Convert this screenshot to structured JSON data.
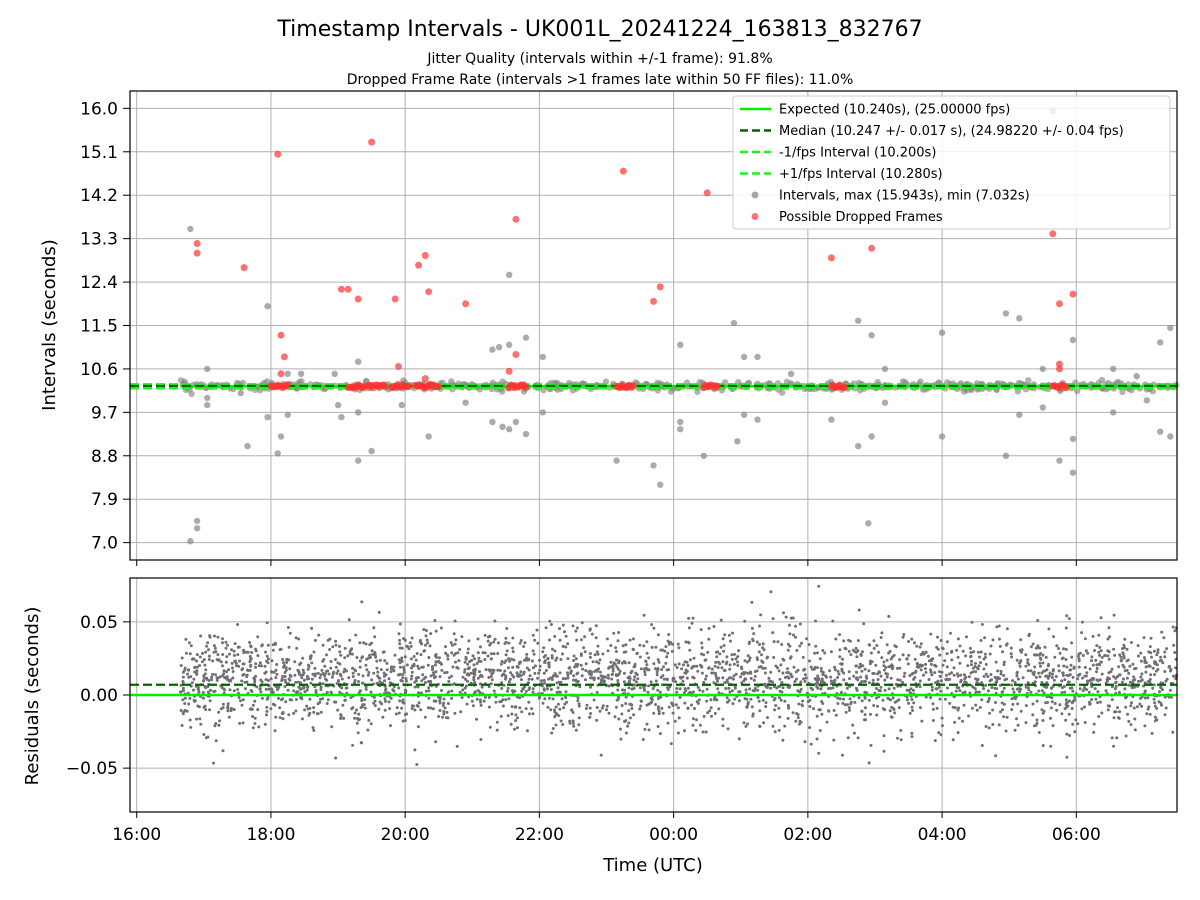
{
  "chart_data": {
    "title": "Timestamp Intervals - UK001L_20241224_163813_832767",
    "subtitle_lines": [
      "Jitter Quality (intervals within +/-1 frame): 91.8%",
      "Dropped Frame Rate (intervals >1 frames late within 50 FF files): 11.0%"
    ],
    "xlabel": "Time (UTC)",
    "x_ticks": [
      "16:00",
      "18:00",
      "20:00",
      "22:00",
      "00:00",
      "02:00",
      "04:00",
      "06:00"
    ],
    "x_range_hours": [
      15.9,
      31.5
    ],
    "data_range_hours": [
      16.65,
      31.5
    ],
    "panels": [
      {
        "type": "scatter",
        "ylabel": "Intervals (seconds)",
        "ylim": [
          6.64,
          16.36
        ],
        "y_ticks": [
          "7.0",
          "7.9",
          "8.8",
          "9.7",
          "10.6",
          "11.5",
          "12.4",
          "13.3",
          "14.2",
          "15.1",
          "16.0"
        ],
        "grid": true,
        "legend_position": "top-right",
        "legend": [
          {
            "label": "Expected (10.240s), (25.00000 fps)",
            "style": "solid-line",
            "color": "#00ee00"
          },
          {
            "label": "Median (10.247 +/- 0.017 s), (24.98220 +/- 0.04 fps)",
            "style": "dashed-line",
            "color": "#006400"
          },
          {
            "label": "-1/fps Interval (10.200s)",
            "style": "dashed-line",
            "color": "#22ee22"
          },
          {
            "label": "+1/fps Interval (10.280s)",
            "style": "dashed-line",
            "color": "#22ee22"
          },
          {
            "label": "Intervals, max (15.943s), min (7.032s)",
            "style": "marker",
            "color": "#888888"
          },
          {
            "label": "Possible Dropped Frames",
            "style": "marker",
            "color": "#ff4444"
          }
        ],
        "lines": {
          "expected": 10.24,
          "median": 10.247,
          "minus_1_fps": 10.2,
          "plus_1_fps": 10.28
        },
        "interval_outliers": [
          [
            16.8,
            13.5
          ],
          [
            16.8,
            7.03
          ],
          [
            16.9,
            7.45
          ],
          [
            16.9,
            7.3
          ],
          [
            17.05,
            10.6
          ],
          [
            17.05,
            9.85
          ],
          [
            17.05,
            10.0
          ],
          [
            17.55,
            10.1
          ],
          [
            17.65,
            9.0
          ],
          [
            17.95,
            11.9
          ],
          [
            17.95,
            9.6
          ],
          [
            18.1,
            8.85
          ],
          [
            18.15,
            9.2
          ],
          [
            18.25,
            9.65
          ],
          [
            18.25,
            10.5
          ],
          [
            18.45,
            10.5
          ],
          [
            18.95,
            10.5
          ],
          [
            19.0,
            9.85
          ],
          [
            19.05,
            9.6
          ],
          [
            19.3,
            10.75
          ],
          [
            19.3,
            8.7
          ],
          [
            19.3,
            9.7
          ],
          [
            19.5,
            8.9
          ],
          [
            19.95,
            9.85
          ],
          [
            20.35,
            9.2
          ],
          [
            20.9,
            9.9
          ],
          [
            21.3,
            9.5
          ],
          [
            21.3,
            11.0
          ],
          [
            21.4,
            11.05
          ],
          [
            21.45,
            9.4
          ],
          [
            21.55,
            12.55
          ],
          [
            21.55,
            11.1
          ],
          [
            21.55,
            9.35
          ],
          [
            21.65,
            9.5
          ],
          [
            21.8,
            11.25
          ],
          [
            21.8,
            9.25
          ],
          [
            22.05,
            10.85
          ],
          [
            22.05,
            9.7
          ],
          [
            23.15,
            8.7
          ],
          [
            23.7,
            8.6
          ],
          [
            23.8,
            8.2
          ],
          [
            24.1,
            11.1
          ],
          [
            24.1,
            9.5
          ],
          [
            24.1,
            9.35
          ],
          [
            24.45,
            8.8
          ],
          [
            24.9,
            11.55
          ],
          [
            24.95,
            9.1
          ],
          [
            25.05,
            9.65
          ],
          [
            25.05,
            10.85
          ],
          [
            25.25,
            9.55
          ],
          [
            25.25,
            10.85
          ],
          [
            25.75,
            10.5
          ],
          [
            26.35,
            9.55
          ],
          [
            26.75,
            11.6
          ],
          [
            26.75,
            9.0
          ],
          [
            26.9,
            7.4
          ],
          [
            26.95,
            11.3
          ],
          [
            26.95,
            9.2
          ],
          [
            27.15,
            10.6
          ],
          [
            27.15,
            9.9
          ],
          [
            28.0,
            11.35
          ],
          [
            28.0,
            9.2
          ],
          [
            28.95,
            11.75
          ],
          [
            28.95,
            8.8
          ],
          [
            29.15,
            11.65
          ],
          [
            29.15,
            9.65
          ],
          [
            29.5,
            9.8
          ],
          [
            29.5,
            10.6
          ],
          [
            29.75,
            8.7
          ],
          [
            29.95,
            9.15
          ],
          [
            29.95,
            11.2
          ],
          [
            29.95,
            8.45
          ],
          [
            30.55,
            10.6
          ],
          [
            30.55,
            9.7
          ],
          [
            30.9,
            10.45
          ],
          [
            31.05,
            9.95
          ],
          [
            31.25,
            11.15
          ],
          [
            31.25,
            9.3
          ],
          [
            31.4,
            11.45
          ],
          [
            31.4,
            9.2
          ]
        ],
        "dropped_outliers": [
          [
            16.9,
            13.2
          ],
          [
            16.9,
            13.0
          ],
          [
            17.6,
            12.7
          ],
          [
            18.1,
            15.05
          ],
          [
            18.15,
            11.3
          ],
          [
            18.2,
            10.85
          ],
          [
            18.15,
            10.5
          ],
          [
            19.05,
            12.25
          ],
          [
            19.15,
            12.25
          ],
          [
            19.3,
            12.05
          ],
          [
            19.5,
            15.3
          ],
          [
            19.85,
            12.05
          ],
          [
            19.9,
            10.65
          ],
          [
            20.2,
            12.75
          ],
          [
            20.3,
            12.95
          ],
          [
            20.35,
            12.2
          ],
          [
            20.3,
            10.4
          ],
          [
            20.9,
            11.95
          ],
          [
            21.55,
            10.55
          ],
          [
            21.65,
            13.7
          ],
          [
            21.65,
            10.9
          ],
          [
            23.25,
            14.7
          ],
          [
            23.7,
            12.0
          ],
          [
            23.8,
            12.3
          ],
          [
            24.5,
            14.25
          ],
          [
            26.35,
            12.9
          ],
          [
            26.95,
            13.1
          ],
          [
            29.65,
            15.95
          ],
          [
            29.65,
            13.4
          ],
          [
            29.75,
            11.95
          ],
          [
            29.75,
            10.7
          ],
          [
            29.75,
            10.6
          ],
          [
            29.95,
            12.15
          ]
        ],
        "dropped_clusters": [
          [
            18.0,
            18.25
          ],
          [
            19.15,
            19.4
          ],
          [
            19.45,
            19.7
          ],
          [
            19.8,
            20.05
          ],
          [
            20.15,
            20.5
          ],
          [
            21.55,
            21.8
          ],
          [
            23.15,
            23.4
          ],
          [
            24.45,
            24.65
          ],
          [
            26.35,
            26.55
          ],
          [
            29.65,
            29.85
          ]
        ]
      },
      {
        "type": "scatter",
        "ylabel": "Residuals (seconds)",
        "ylim": [
          -0.08,
          0.08
        ],
        "y_ticks": [
          "−0.05",
          "0.00",
          "0.05"
        ],
        "grid": true,
        "lines": {
          "expected": 0.0,
          "median": 0.007
        },
        "residual_spread": {
          "center": 0.01,
          "sigma": 0.017
        }
      }
    ]
  }
}
